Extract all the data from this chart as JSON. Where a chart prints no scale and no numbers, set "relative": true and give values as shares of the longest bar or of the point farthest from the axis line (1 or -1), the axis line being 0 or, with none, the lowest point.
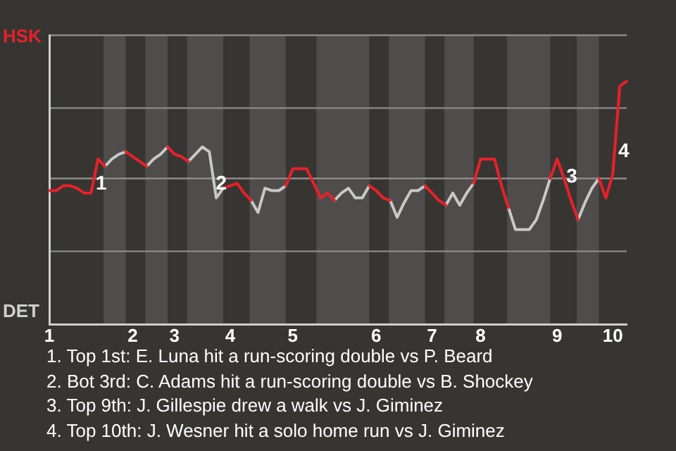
{
  "chart_data": {
    "type": "line",
    "relative": true,
    "categories": [
      "1",
      null,
      null,
      null,
      null,
      null,
      null,
      null,
      null,
      null,
      null,
      null,
      "2",
      null,
      null,
      null,
      null,
      null,
      "3",
      null,
      null,
      null,
      null,
      null,
      null,
      null,
      "4",
      null,
      null,
      null,
      null,
      null,
      null,
      null,
      null,
      "5",
      null,
      null,
      null,
      null,
      null,
      null,
      null,
      null,
      null,
      null,
      null,
      "6",
      null,
      null,
      null,
      null,
      null,
      null,
      null,
      "7",
      null,
      null,
      null,
      null,
      null,
      null,
      "8",
      null,
      null,
      null,
      null,
      null,
      null,
      null,
      null,
      null,
      null,
      "9",
      null,
      null,
      null,
      null,
      null,
      null,
      null,
      "10",
      null,
      null
    ],
    "series": [
      {
        "color": "#e8202a",
        "values": [
          0.55,
          0.55,
          0.57,
          0.57,
          0.56,
          0.54,
          0.54,
          0.68,
          0.65,
          null,
          null,
          0.71,
          0.69,
          0.67,
          0.65,
          null,
          null,
          0.73,
          0.7,
          0.69,
          0.67,
          null,
          null,
          null,
          null,
          0.56,
          0.57,
          0.58,
          0.54,
          0.51,
          null,
          null,
          null,
          null,
          0.57,
          0.64,
          0.64,
          0.64,
          0.58,
          0.52,
          0.54,
          0.51,
          null,
          null,
          null,
          null,
          0.57,
          0.55,
          0.52,
          0.51,
          null,
          null,
          null,
          null,
          0.57,
          0.54,
          0.51,
          0.49,
          null,
          null,
          null,
          0.58,
          0.68,
          0.68,
          0.68,
          0.57,
          0.48,
          null,
          null,
          null,
          null,
          null,
          0.6,
          0.68,
          0.6,
          0.51,
          0.43,
          null,
          null,
          0.6,
          0.52,
          0.62,
          0.98,
          1
        ]
      },
      {
        "color": "#c8c8c8",
        "values": [
          null,
          null,
          null,
          null,
          null,
          null,
          null,
          null,
          0.65,
          0.68,
          0.7,
          0.71,
          null,
          null,
          0.65,
          0.68,
          0.7,
          0.73,
          null,
          null,
          0.67,
          0.7,
          0.73,
          0.71,
          0.52,
          0.56,
          null,
          null,
          null,
          0.51,
          0.46,
          0.56,
          0.55,
          0.55,
          0.57,
          null,
          null,
          null,
          null,
          null,
          null,
          0.51,
          0.54,
          0.56,
          0.52,
          0.52,
          0.57,
          null,
          null,
          0.51,
          0.44,
          0.5,
          0.55,
          0.55,
          0.57,
          null,
          null,
          0.49,
          0.54,
          0.49,
          0.54,
          0.58,
          null,
          null,
          null,
          null,
          0.48,
          0.39,
          0.39,
          0.39,
          0.43,
          0.51,
          0.6,
          null,
          null,
          null,
          0.43,
          0.5,
          0.56,
          0.6,
          null,
          null,
          null,
          null
        ]
      }
    ],
    "ref_lines": [
      {
        "axis": "y",
        "value": 0.3,
        "color": "#8a8a88"
      },
      {
        "axis": "y",
        "value": 0.6,
        "color": "#8a8a88"
      },
      {
        "axis": "y",
        "value": 0.89,
        "color": "#8a8a88"
      },
      {
        "axis": "y",
        "value": 1.19,
        "color": "#8a8a88"
      }
    ],
    "marker": "none",
    "line_style": "solid",
    "legend": false,
    "annotations": [
      "HSK",
      "DET",
      "1",
      "2",
      "3",
      "4",
      "1. Top 1st: E. Luna hit a run-scoring double vs P. Beard",
      "2. Bot 3rd: C. Adams hit a run-scoring double vs B. Shockey",
      "3. Top 9th: J. Gillespie drew a walk vs J. Giminez",
      "4. Top 10th: J. Wesner hit a solo home run vs J. Giminez"
    ]
  }
}
